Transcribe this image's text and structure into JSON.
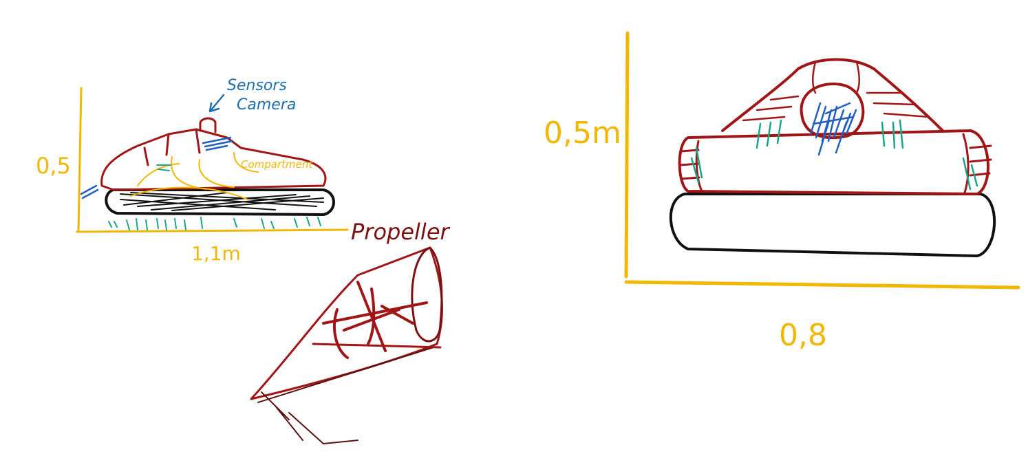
{
  "colors": {
    "outline": "#a01515",
    "skirt": "#111111",
    "dimension": "#f2b705",
    "sensor": "#1f5fbf",
    "airflow": "#1aa58a",
    "propeller": "#7a1010"
  },
  "side_view": {
    "annotation_sensors": "Sensors",
    "annotation_camera": "Camera",
    "annotation_compartment": "Compartment",
    "height_label": "0,5",
    "length_label": "1,1m"
  },
  "propeller_sketch": {
    "label": "Propeller"
  },
  "front_view": {
    "height_label": "0,5m",
    "width_label": "0,8"
  }
}
